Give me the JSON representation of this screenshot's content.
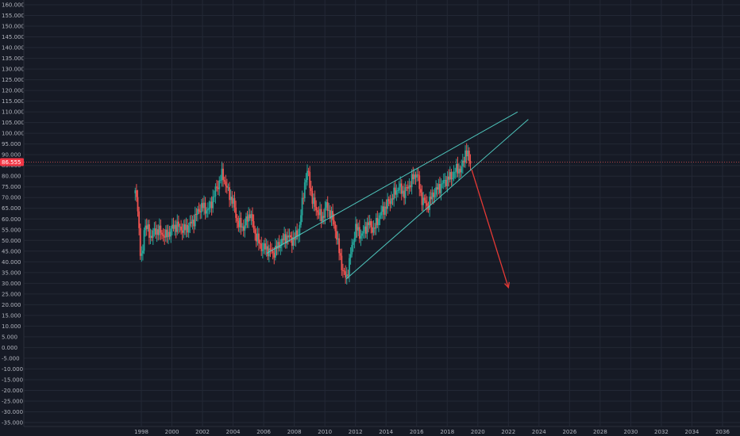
{
  "chart_data": {
    "type": "candlestick",
    "y_ticks": [
      "160.000",
      "155.000",
      "150.000",
      "145.000",
      "140.000",
      "135.000",
      "130.000",
      "125.000",
      "120.000",
      "115.000",
      "110.000",
      "105.000",
      "100.000",
      "95.000",
      "90.000",
      "85.000",
      "80.000",
      "75.000",
      "70.000",
      "65.000",
      "60.000",
      "55.000",
      "50.000",
      "45.000",
      "40.000",
      "35.000",
      "30.000",
      "25.000",
      "20.000",
      "15.000",
      "10.000",
      "5.000",
      "0.000",
      "-5.000",
      "-10.000",
      "-15.000",
      "-20.000",
      "-25.000",
      "-30.000",
      "-35.000"
    ],
    "x_ticks": [
      "1998",
      "2000",
      "2002",
      "2004",
      "2006",
      "2008",
      "2010",
      "2012",
      "2014",
      "2016",
      "2018",
      "2020",
      "2022",
      "2024",
      "2026",
      "2028",
      "2030",
      "2032",
      "2034",
      "2036"
    ],
    "ylim": [
      -35,
      160
    ],
    "xlim": [
      1997.0,
      2037.0
    ],
    "last_price": "86.555",
    "last_price_value": 86.555,
    "price_path": [
      [
        1997.6,
        72
      ],
      [
        1997.8,
        65
      ],
      [
        1997.9,
        45
      ],
      [
        1998.05,
        40
      ],
      [
        1998.2,
        58
      ],
      [
        1998.6,
        52
      ],
      [
        1999.0,
        55
      ],
      [
        1999.6,
        52
      ],
      [
        2000.2,
        57
      ],
      [
        2000.8,
        55
      ],
      [
        2001.3,
        58
      ],
      [
        2001.9,
        66
      ],
      [
        2002.4,
        64
      ],
      [
        2002.9,
        74
      ],
      [
        2003.3,
        81
      ],
      [
        2003.7,
        72
      ],
      [
        2004.0,
        68
      ],
      [
        2004.3,
        58
      ],
      [
        2004.7,
        56
      ],
      [
        2005.1,
        63
      ],
      [
        2005.4,
        54
      ],
      [
        2005.8,
        47
      ],
      [
        2006.2,
        46
      ],
      [
        2006.6,
        44
      ],
      [
        2007.0,
        48
      ],
      [
        2007.5,
        52
      ],
      [
        2007.9,
        50
      ],
      [
        2008.3,
        54
      ],
      [
        2008.7,
        78
      ],
      [
        2008.9,
        82
      ],
      [
        2009.2,
        68
      ],
      [
        2009.5,
        64
      ],
      [
        2009.8,
        60
      ],
      [
        2010.1,
        66
      ],
      [
        2010.4,
        62
      ],
      [
        2010.7,
        55
      ],
      [
        2010.9,
        46
      ],
      [
        2011.2,
        35
      ],
      [
        2011.4,
        32
      ],
      [
        2011.7,
        44
      ],
      [
        2012.0,
        56
      ],
      [
        2012.4,
        52
      ],
      [
        2012.8,
        58
      ],
      [
        2013.2,
        55
      ],
      [
        2013.6,
        62
      ],
      [
        2014.0,
        66
      ],
      [
        2014.4,
        70
      ],
      [
        2014.8,
        75
      ],
      [
        2015.2,
        72
      ],
      [
        2015.6,
        77
      ],
      [
        2016.0,
        82
      ],
      [
        2016.3,
        70
      ],
      [
        2016.7,
        66
      ],
      [
        2017.1,
        72
      ],
      [
        2017.5,
        75
      ],
      [
        2017.9,
        78
      ],
      [
        2018.3,
        80
      ],
      [
        2018.7,
        84
      ],
      [
        2018.9,
        82
      ],
      [
        2019.2,
        92
      ],
      [
        2019.4,
        88
      ],
      [
        2019.55,
        86.5
      ]
    ],
    "trendlines": [
      {
        "name": "upper-channel",
        "x": [
          2006.2,
          2022.6
        ],
        "y": [
          44,
          110
        ]
      },
      {
        "name": "lower-channel",
        "x": [
          2011.4,
          2023.3
        ],
        "y": [
          32,
          106.5
        ]
      }
    ],
    "projection": {
      "x": [
        2019.6,
        2022.0
      ],
      "y": [
        83,
        28
      ]
    },
    "grid": true,
    "axis_position": "left"
  }
}
